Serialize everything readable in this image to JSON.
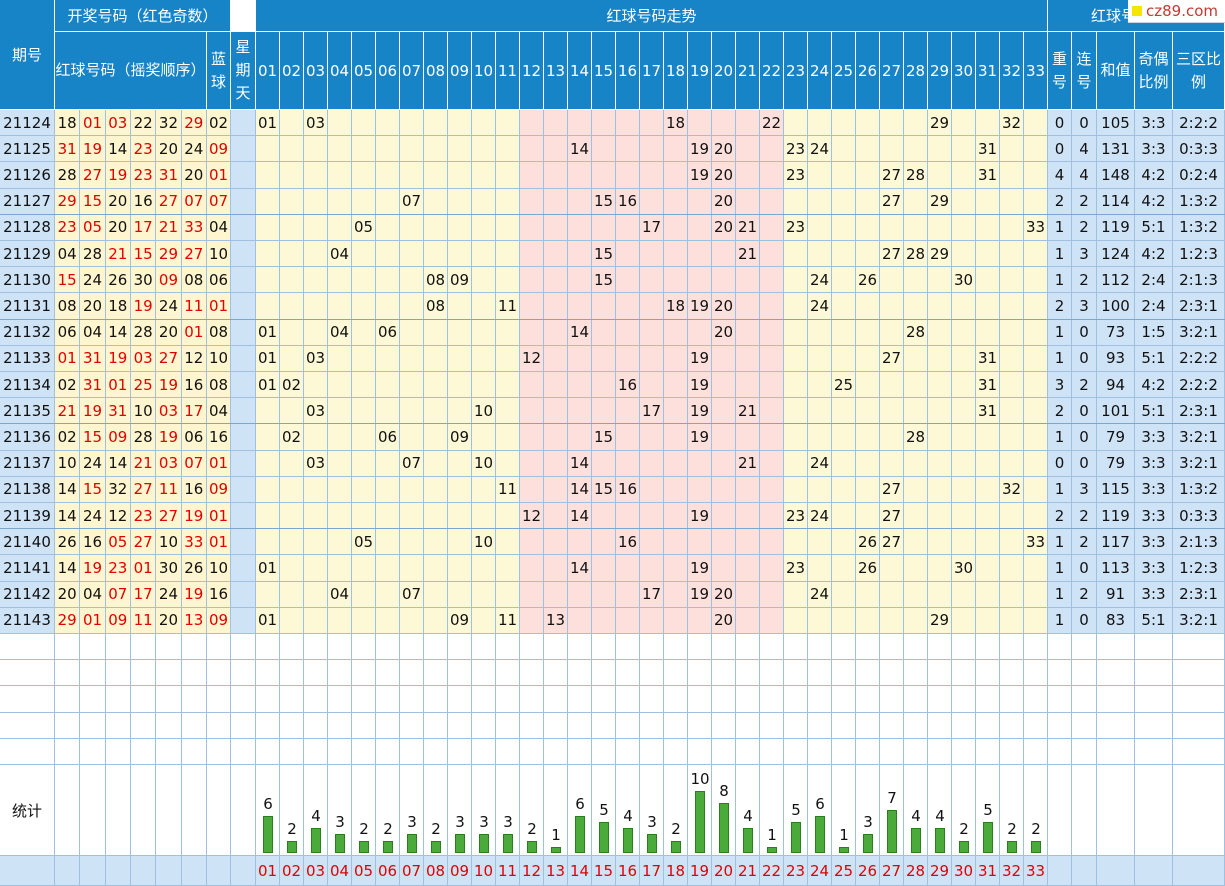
{
  "header": {
    "period": "期号",
    "draw_group": "开奖号码（红色奇数）",
    "red_balls": "红球号码（摇奖顺序）",
    "blue_ball": "蓝球",
    "weekday": "星期天",
    "trend_group": "红球号码走势",
    "analysis_group": "红球号码分析",
    "repeat": "重号",
    "consecutive": "连号",
    "sum": "和值",
    "odd_even": "奇偶比例",
    "zone": "三区比例"
  },
  "logo_text": "cz89.com",
  "stats_label": "统计",
  "numbers": [
    "01",
    "02",
    "03",
    "04",
    "05",
    "06",
    "07",
    "08",
    "09",
    "10",
    "11",
    "12",
    "13",
    "14",
    "15",
    "16",
    "17",
    "18",
    "19",
    "20",
    "21",
    "22",
    "23",
    "24",
    "25",
    "26",
    "27",
    "28",
    "29",
    "30",
    "31",
    "32",
    "33"
  ],
  "colors": {
    "header_bg": "#1784c8",
    "odd_red": "#e00000",
    "zone_yellow": "#fdf8d6",
    "zone_pink": "#fde0dc",
    "info_blue": "#cfe3f7",
    "draw_yellow": "#fff6cf",
    "bar_green": "#4aaa3a"
  },
  "rows": [
    {
      "period": "21124",
      "reds": [
        "18",
        "01",
        "03",
        "22",
        "32",
        "29"
      ],
      "blue": "02",
      "repeat": "0",
      "consecutive": "0",
      "sum": "105",
      "odd_even": "3:3",
      "zone": "2:2:2"
    },
    {
      "period": "21125",
      "reds": [
        "31",
        "19",
        "14",
        "23",
        "20",
        "24"
      ],
      "blue": "09",
      "repeat": "0",
      "consecutive": "4",
      "sum": "131",
      "odd_even": "3:3",
      "zone": "0:3:3"
    },
    {
      "period": "21126",
      "reds": [
        "28",
        "27",
        "19",
        "23",
        "31",
        "20"
      ],
      "blue": "01",
      "repeat": "4",
      "consecutive": "4",
      "sum": "148",
      "odd_even": "4:2",
      "zone": "0:2:4"
    },
    {
      "period": "21127",
      "reds": [
        "29",
        "15",
        "20",
        "16",
        "27",
        "07"
      ],
      "blue": "07",
      "repeat": "2",
      "consecutive": "2",
      "sum": "114",
      "odd_even": "4:2",
      "zone": "1:3:2"
    },
    {
      "period": "21128",
      "reds": [
        "23",
        "05",
        "20",
        "17",
        "21",
        "33"
      ],
      "blue": "04",
      "repeat": "1",
      "consecutive": "2",
      "sum": "119",
      "odd_even": "5:1",
      "zone": "1:3:2"
    },
    {
      "period": "21129",
      "reds": [
        "04",
        "28",
        "21",
        "15",
        "29",
        "27"
      ],
      "blue": "10",
      "repeat": "1",
      "consecutive": "3",
      "sum": "124",
      "odd_even": "4:2",
      "zone": "1:2:3"
    },
    {
      "period": "21130",
      "reds": [
        "15",
        "24",
        "26",
        "30",
        "09",
        "08"
      ],
      "blue": "06",
      "repeat": "1",
      "consecutive": "2",
      "sum": "112",
      "odd_even": "2:4",
      "zone": "2:1:3"
    },
    {
      "period": "21131",
      "reds": [
        "08",
        "20",
        "18",
        "19",
        "24",
        "11"
      ],
      "blue": "01",
      "repeat": "2",
      "consecutive": "3",
      "sum": "100",
      "odd_even": "2:4",
      "zone": "2:3:1"
    },
    {
      "period": "21132",
      "reds": [
        "06",
        "04",
        "14",
        "28",
        "20",
        "01"
      ],
      "blue": "08",
      "repeat": "1",
      "consecutive": "0",
      "sum": "73",
      "odd_even": "1:5",
      "zone": "3:2:1"
    },
    {
      "period": "21133",
      "reds": [
        "01",
        "31",
        "19",
        "03",
        "27",
        "12"
      ],
      "blue": "10",
      "repeat": "1",
      "consecutive": "0",
      "sum": "93",
      "odd_even": "5:1",
      "zone": "2:2:2"
    },
    {
      "period": "21134",
      "reds": [
        "02",
        "31",
        "01",
        "25",
        "19",
        "16"
      ],
      "blue": "08",
      "repeat": "3",
      "consecutive": "2",
      "sum": "94",
      "odd_even": "4:2",
      "zone": "2:2:2"
    },
    {
      "period": "21135",
      "reds": [
        "21",
        "19",
        "31",
        "10",
        "03",
        "17"
      ],
      "blue": "04",
      "repeat": "2",
      "consecutive": "0",
      "sum": "101",
      "odd_even": "5:1",
      "zone": "2:3:1"
    },
    {
      "period": "21136",
      "reds": [
        "02",
        "15",
        "09",
        "28",
        "19",
        "06"
      ],
      "blue": "16",
      "repeat": "1",
      "consecutive": "0",
      "sum": "79",
      "odd_even": "3:3",
      "zone": "3:2:1"
    },
    {
      "period": "21137",
      "reds": [
        "10",
        "24",
        "14",
        "21",
        "03",
        "07"
      ],
      "blue": "01",
      "repeat": "0",
      "consecutive": "0",
      "sum": "79",
      "odd_even": "3:3",
      "zone": "3:2:1"
    },
    {
      "period": "21138",
      "reds": [
        "14",
        "15",
        "32",
        "27",
        "11",
        "16"
      ],
      "blue": "09",
      "repeat": "1",
      "consecutive": "3",
      "sum": "115",
      "odd_even": "3:3",
      "zone": "1:3:2"
    },
    {
      "period": "21139",
      "reds": [
        "14",
        "24",
        "12",
        "23",
        "27",
        "19"
      ],
      "blue": "01",
      "repeat": "2",
      "consecutive": "2",
      "sum": "119",
      "odd_even": "3:3",
      "zone": "0:3:3"
    },
    {
      "period": "21140",
      "reds": [
        "26",
        "16",
        "05",
        "27",
        "10",
        "33"
      ],
      "blue": "01",
      "repeat": "1",
      "consecutive": "2",
      "sum": "117",
      "odd_even": "3:3",
      "zone": "2:1:3"
    },
    {
      "period": "21141",
      "reds": [
        "14",
        "19",
        "23",
        "01",
        "30",
        "26"
      ],
      "blue": "10",
      "repeat": "1",
      "consecutive": "0",
      "sum": "113",
      "odd_even": "3:3",
      "zone": "1:2:3"
    },
    {
      "period": "21142",
      "reds": [
        "20",
        "04",
        "07",
        "17",
        "24",
        "19"
      ],
      "blue": "16",
      "repeat": "1",
      "consecutive": "2",
      "sum": "91",
      "odd_even": "3:3",
      "zone": "2:3:1"
    },
    {
      "period": "21143",
      "reds": [
        "29",
        "01",
        "09",
        "11",
        "20",
        "13"
      ],
      "blue": "09",
      "repeat": "1",
      "consecutive": "0",
      "sum": "83",
      "odd_even": "5:1",
      "zone": "3:2:1"
    }
  ],
  "chart_data": {
    "type": "bar",
    "title": "",
    "xlabel": "",
    "ylabel": "",
    "categories": [
      "01",
      "02",
      "03",
      "04",
      "05",
      "06",
      "07",
      "08",
      "09",
      "10",
      "11",
      "12",
      "13",
      "14",
      "15",
      "16",
      "17",
      "18",
      "19",
      "20",
      "21",
      "22",
      "23",
      "24",
      "25",
      "26",
      "27",
      "28",
      "29",
      "30",
      "31",
      "32",
      "33"
    ],
    "values": [
      6,
      2,
      4,
      3,
      2,
      2,
      3,
      2,
      3,
      3,
      3,
      2,
      1,
      6,
      5,
      4,
      3,
      2,
      10,
      8,
      4,
      1,
      5,
      6,
      1,
      3,
      7,
      4,
      4,
      2,
      5,
      2,
      2
    ],
    "ylim": [
      0,
      10
    ]
  }
}
